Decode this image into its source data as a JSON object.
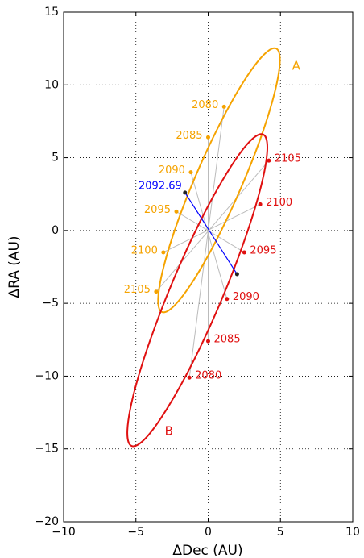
{
  "chart_data": {
    "type": "line",
    "xlabel": "ΔDec (AU)",
    "ylabel": "ΔRA (AU)",
    "xlim": [
      -10,
      10
    ],
    "ylim": [
      -20,
      15
    ],
    "xticks": [
      {
        "value": -10,
        "label": "−10"
      },
      {
        "value": -5,
        "label": "−5"
      },
      0,
      5,
      10
    ],
    "yticks": [
      {
        "value": -20,
        "label": "−20"
      },
      {
        "value": -15,
        "label": "−15"
      },
      {
        "value": -10,
        "label": "−10"
      },
      {
        "value": -5,
        "label": "−5"
      },
      0,
      5,
      10,
      15
    ],
    "grid": true,
    "series": [
      {
        "name": "A",
        "color": "#f5a300",
        "x": [
          4.7,
          3.84,
          2.5,
          0.9,
          -0.72,
          -2.12,
          -3.08,
          -3.46,
          -3.2,
          -2.34,
          -1.0,
          0.6,
          2.22,
          3.62,
          4.58,
          4.96
        ],
        "y": [
          12.5,
          12.06,
          10.3,
          7.5,
          4.09,
          0.58,
          -2.5,
          -4.67,
          -5.6,
          -5.16,
          -3.4,
          -0.6,
          2.81,
          6.32,
          9.4,
          11.57
        ],
        "epochs": [
          {
            "label": "2080",
            "x": 1.1,
            "y": 8.5
          },
          {
            "label": "2085",
            "x": 0.0,
            "y": 6.4
          },
          {
            "label": "2090",
            "x": -1.2,
            "y": 4.0
          },
          {
            "label": "2095",
            "x": -2.2,
            "y": 1.3
          },
          {
            "label": "2100",
            "x": -3.1,
            "y": -1.5
          },
          {
            "label": "2105",
            "x": -3.6,
            "y": -4.2
          }
        ]
      },
      {
        "name": "B",
        "color": "#e01010",
        "x": [
          3.8,
          2.82,
          1.3,
          -0.54,
          -2.41,
          -4.02,
          -5.14,
          -5.59,
          -5.3,
          -4.32,
          -2.8,
          -0.96,
          0.91,
          2.52,
          3.64,
          4.09
        ],
        "y": [
          6.6,
          6.06,
          3.96,
          0.65,
          -3.4,
          -7.55,
          -11.17,
          -13.72,
          -14.8,
          -14.26,
          -12.16,
          -8.85,
          -4.8,
          -0.65,
          2.97,
          5.52
        ],
        "epochs": [
          {
            "label": "2080",
            "x": -1.3,
            "y": -10.1
          },
          {
            "label": "2085",
            "x": 0.0,
            "y": -7.6
          },
          {
            "label": "2090",
            "x": 1.3,
            "y": -4.7
          },
          {
            "label": "2095",
            "x": 2.5,
            "y": -1.5
          },
          {
            "label": "2100",
            "x": 3.6,
            "y": 1.8
          },
          {
            "label": "2105",
            "x": 4.2,
            "y": 4.8
          }
        ]
      }
    ],
    "conjunction": {
      "label": "2092.69",
      "color": "#0000ff",
      "x": [
        -1.6,
        2.0
      ],
      "y": [
        2.6,
        -3.0
      ]
    }
  }
}
